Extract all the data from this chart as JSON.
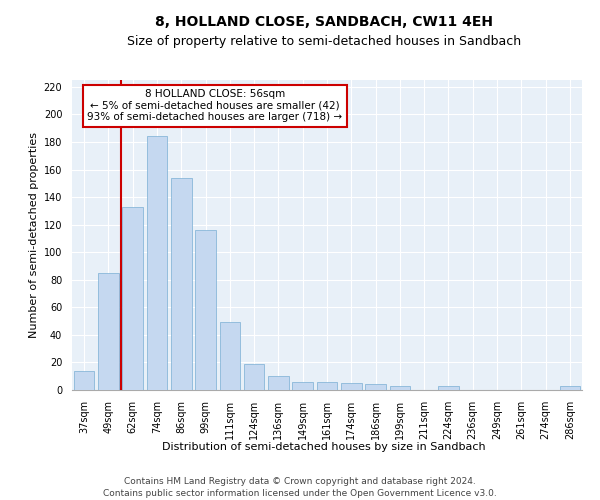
{
  "title": "8, HOLLAND CLOSE, SANDBACH, CW11 4EH",
  "subtitle": "Size of property relative to semi-detached houses in Sandbach",
  "xlabel": "Distribution of semi-detached houses by size in Sandbach",
  "ylabel": "Number of semi-detached properties",
  "categories": [
    "37sqm",
    "49sqm",
    "62sqm",
    "74sqm",
    "86sqm",
    "99sqm",
    "111sqm",
    "124sqm",
    "136sqm",
    "149sqm",
    "161sqm",
    "174sqm",
    "186sqm",
    "199sqm",
    "211sqm",
    "224sqm",
    "236sqm",
    "249sqm",
    "261sqm",
    "274sqm",
    "286sqm"
  ],
  "values": [
    14,
    85,
    133,
    184,
    154,
    116,
    49,
    19,
    10,
    6,
    6,
    5,
    4,
    3,
    0,
    3,
    0,
    0,
    0,
    0,
    3
  ],
  "bar_color": "#c5d8f0",
  "bar_edge_color": "#7aaed4",
  "vline_color": "#cc0000",
  "annotation_line1": "8 HOLLAND CLOSE: 56sqm",
  "annotation_line2": "← 5% of semi-detached houses are smaller (42)",
  "annotation_line3": "93% of semi-detached houses are larger (718) →",
  "annotation_box_color": "#ffffff",
  "annotation_box_edgecolor": "#cc0000",
  "ylim": [
    0,
    225
  ],
  "yticks": [
    0,
    20,
    40,
    60,
    80,
    100,
    120,
    140,
    160,
    180,
    200,
    220
  ],
  "footnote1": "Contains HM Land Registry data © Crown copyright and database right 2024.",
  "footnote2": "Contains public sector information licensed under the Open Government Licence v3.0.",
  "plot_bg_color": "#e8f0f8",
  "title_fontsize": 10,
  "subtitle_fontsize": 9,
  "axis_label_fontsize": 8,
  "tick_fontsize": 7,
  "annotation_fontsize": 7.5,
  "footnote_fontsize": 6.5
}
